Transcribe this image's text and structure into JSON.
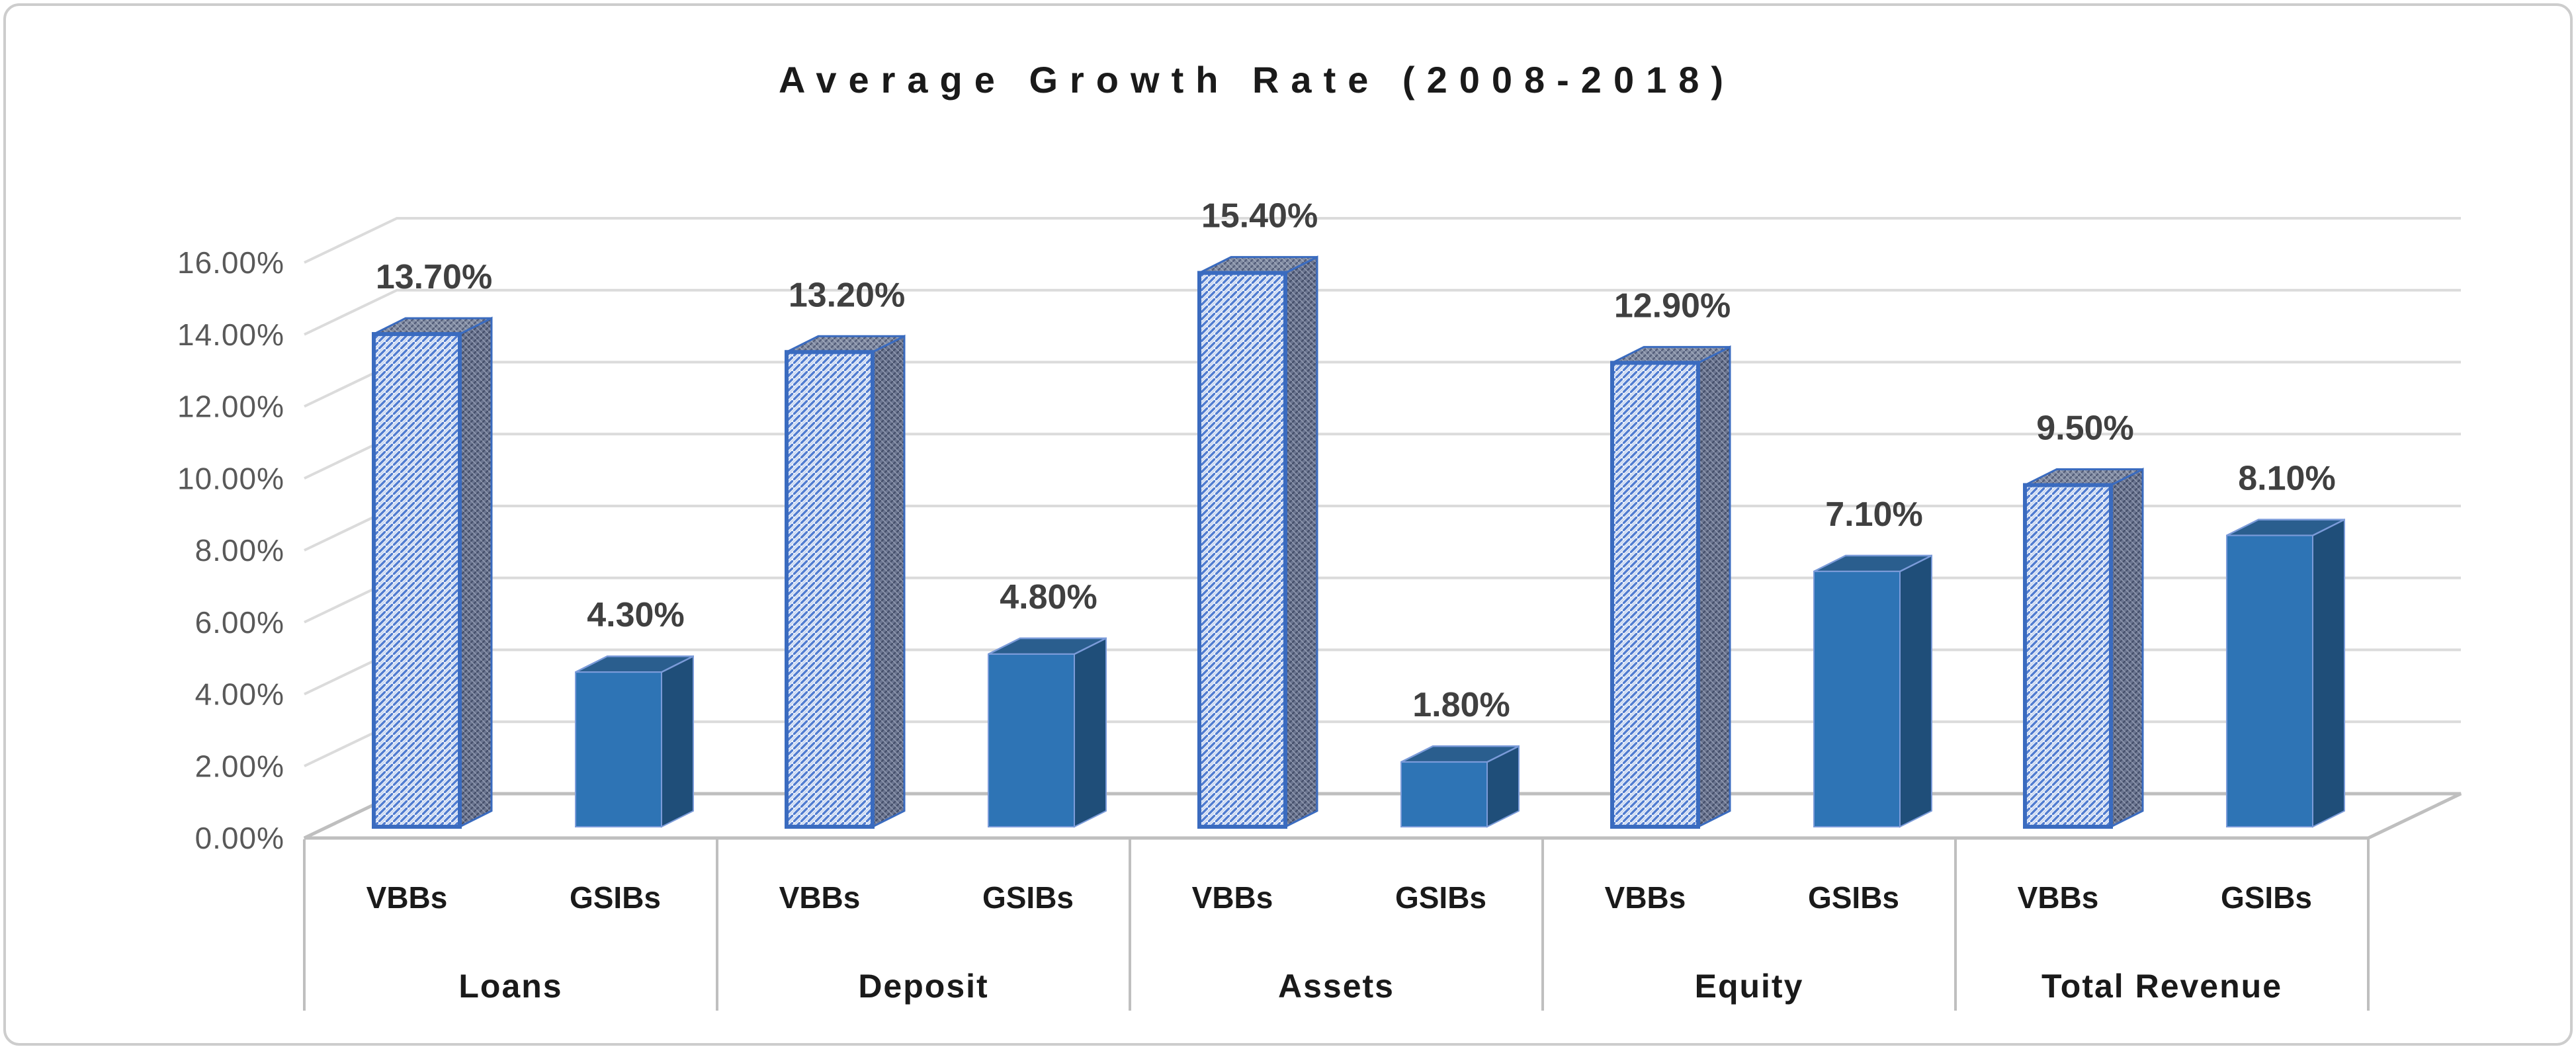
{
  "chart_data": {
    "type": "bar",
    "subtype": "3d-clustered",
    "title": "Average Growth Rate (2008-2018)",
    "categories": [
      "Loans",
      "Deposit",
      "Assets",
      "Equity",
      "Total Revenue"
    ],
    "series": [
      {
        "name": "VBBs",
        "style": "blue-diagonal-hatch",
        "values": [
          13.7,
          13.2,
          15.4,
          12.9,
          9.5
        ],
        "labels": [
          "13.70%",
          "13.20%",
          "15.40%",
          "12.90%",
          "9.50%"
        ]
      },
      {
        "name": "GSIBs",
        "style": "solid-blue",
        "values": [
          4.3,
          4.8,
          1.8,
          7.1,
          8.1
        ],
        "labels": [
          "4.30%",
          "4.80%",
          "1.80%",
          "7.10%",
          "8.10%"
        ]
      }
    ],
    "yticks": [
      "0.00%",
      "2.00%",
      "4.00%",
      "6.00%",
      "8.00%",
      "10.00%",
      "12.00%",
      "14.00%",
      "16.00%"
    ],
    "ylim": [
      0,
      16
    ],
    "ytick_step": 2,
    "grid": true,
    "legend_position": "none",
    "colors": {
      "vbbs_hatch_line": "#4F7BD0",
      "vbbs_hatch_bg": "#EAF0FA",
      "vbbs_border": "#3A6BBF",
      "vbbs_side_bg": "#6B7590",
      "vbbs_side_line": "#46506B",
      "gsibs_front": "#2E74B5",
      "gsibs_top": "#2A5E8E",
      "gsibs_side": "#1F4E79",
      "gsibs_edge": "#7B9BD9",
      "gridline": "#DBDBDB",
      "axis_line": "#BFBFBF",
      "ytick_text": "#595959",
      "data_label_text": "#404040",
      "category_text": "#1A1A1A",
      "title_text": "#1A1A1A"
    }
  }
}
